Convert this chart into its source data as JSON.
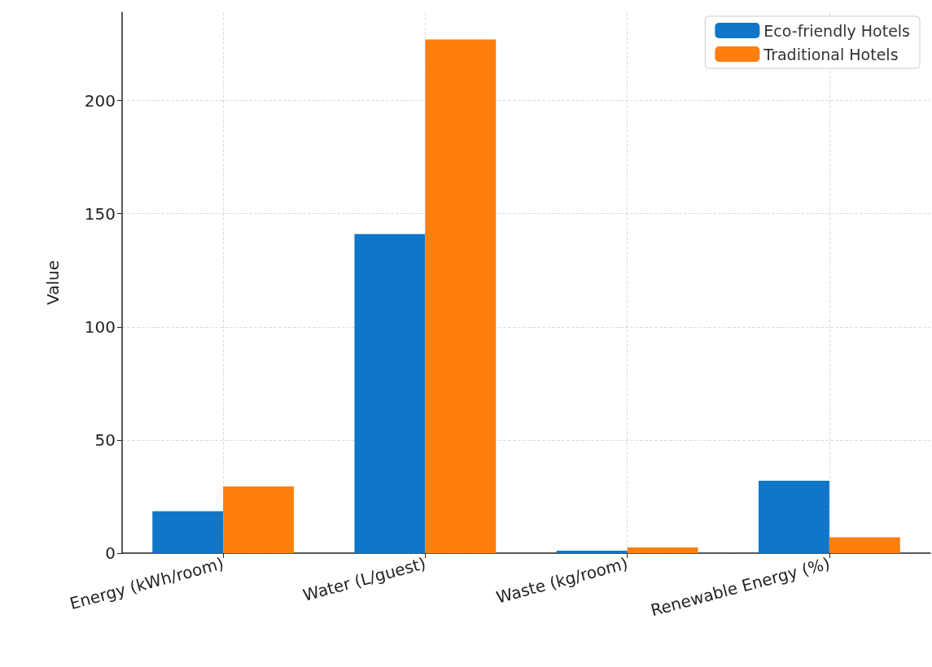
{
  "chart_data": {
    "type": "bar",
    "ylabel": "Value",
    "categories": [
      "Energy (kWh/room)",
      "Water (L/guest)",
      "Waste (kg/room)",
      "Renewable Energy (%)"
    ],
    "series": [
      {
        "name": "Eco-friendly Hotels",
        "color": "#0f76c9",
        "values": [
          18.5,
          141,
          1.1,
          32
        ]
      },
      {
        "name": "Traditional Hotels",
        "color": "#ff7f0e",
        "values": [
          29.5,
          227,
          2.5,
          7
        ]
      }
    ],
    "ylim": [
      0,
      239
    ],
    "yticks": [
      0,
      50,
      100,
      150,
      200
    ],
    "grid": true,
    "legend": "top right"
  }
}
